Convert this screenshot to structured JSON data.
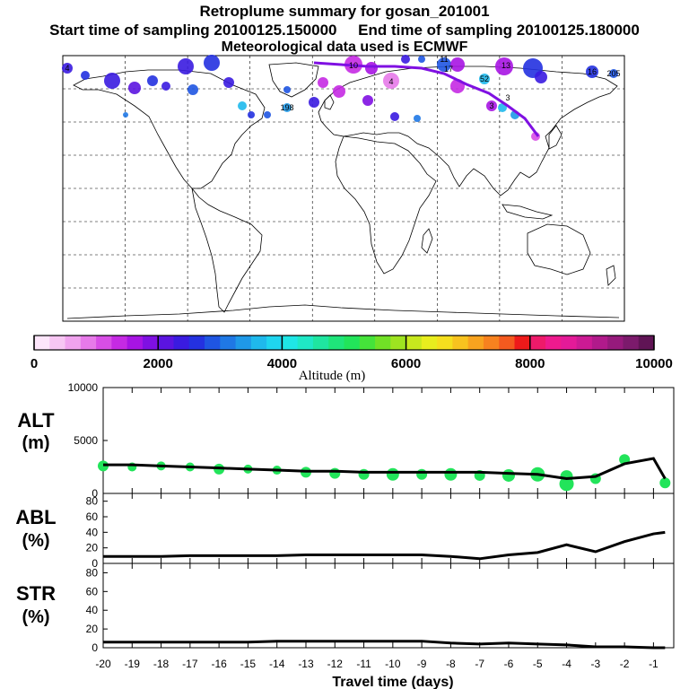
{
  "header": {
    "title": "Retroplume summary for gosan_201001",
    "start_label": "Start time of sampling 20100125.150000",
    "end_label": "End time of sampling 20100125.180000",
    "met_label": "Meteorological data used is ECMWF"
  },
  "colorbar": {
    "ticks": [
      "0",
      "2000",
      "4000",
      "6000",
      "8000",
      "10000"
    ],
    "label": "Altitude (m)",
    "colors": [
      "#fde6fb",
      "#f7c6f3",
      "#f0a3ee",
      "#e77ae9",
      "#d84ee6",
      "#c52ae3",
      "#a714e3",
      "#7f10e2",
      "#5b14e0",
      "#3a1be0",
      "#2431e0",
      "#1f55e2",
      "#1f78e5",
      "#1f99e8",
      "#1fb9ec",
      "#1fd5ef",
      "#1fe6e6",
      "#1fe8c6",
      "#1fe6a0",
      "#1fe57a",
      "#22e45a",
      "#45e33a",
      "#71e126",
      "#9ee320",
      "#c7e81e",
      "#e8ed1e",
      "#f5df1e",
      "#f8c31f",
      "#f8a31f",
      "#f7821f",
      "#f45a1f",
      "#ee1a1a",
      "#ee1a6a",
      "#ee1a8e",
      "#e41a98",
      "#cc1a94",
      "#b11a8b",
      "#961a7c",
      "#7c1a6c",
      "#601455"
    ]
  },
  "map": {
    "markers": [
      "4",
      "10",
      "11",
      "17",
      "13",
      "4",
      "16",
      "205",
      "52",
      "198",
      "3",
      "3"
    ]
  },
  "panels": {
    "alt_label": "ALT",
    "alt_unit": "(m)",
    "abl_label": "ABL",
    "abl_unit": "(%)",
    "str_label": "STR",
    "str_unit": "(%)",
    "xlabel": "Travel time (days)"
  },
  "chart_data": [
    {
      "type": "line",
      "title": "ALT",
      "ylabel": "(m)",
      "ylim": [
        0,
        10000
      ],
      "yticks": [
        "10000",
        "5000",
        "0"
      ],
      "x": [
        -20,
        -19,
        -18,
        -17,
        -16,
        -15,
        -14,
        -13,
        -12,
        -11,
        -10,
        -9,
        -8,
        -7,
        -6,
        -5,
        -4,
        -3,
        -2,
        -1,
        -0.6
      ],
      "values": [
        2700,
        2700,
        2600,
        2500,
        2400,
        2300,
        2200,
        2100,
        2100,
        2000,
        2000,
        2000,
        2000,
        2000,
        1900,
        1800,
        1400,
        1600,
        2800,
        3300,
        1400
      ]
    },
    {
      "type": "line",
      "title": "ABL",
      "ylabel": "(%)",
      "ylim": [
        0,
        90
      ],
      "yticks": [
        "80",
        "60",
        "40",
        "20",
        "0"
      ],
      "x": [
        -20,
        -19,
        -18,
        -17,
        -16,
        -15,
        -14,
        -13,
        -12,
        -11,
        -10,
        -9,
        -8,
        -7,
        -6,
        -5,
        -4,
        -3,
        -2,
        -1,
        -0.6
      ],
      "values": [
        9,
        9,
        9,
        10,
        10,
        10,
        10,
        11,
        11,
        11,
        11,
        11,
        9,
        6,
        11,
        14,
        24,
        15,
        28,
        38,
        40
      ]
    },
    {
      "type": "line",
      "title": "STR",
      "ylabel": "(%)",
      "ylim": [
        0,
        90
      ],
      "yticks": [
        "80",
        "60",
        "40",
        "20",
        "0"
      ],
      "x": [
        -20,
        -19,
        -18,
        -17,
        -16,
        -15,
        -14,
        -13,
        -12,
        -11,
        -10,
        -9,
        -8,
        -7,
        -6,
        -5,
        -4,
        -3,
        -2,
        -1,
        -0.6
      ],
      "values": [
        6,
        6,
        6,
        6,
        6,
        6,
        7,
        7,
        7,
        7,
        7,
        7,
        5,
        4,
        5,
        4,
        3,
        1,
        1,
        0,
        0
      ]
    }
  ],
  "xticks": [
    "-20",
    "-19",
    "-18",
    "-17",
    "-16",
    "-15",
    "-14",
    "-13",
    "-12",
    "-11",
    "-10",
    "-9",
    "-8",
    "-7",
    "-6",
    "-5",
    "-4",
    "-3",
    "-2",
    "-1"
  ]
}
